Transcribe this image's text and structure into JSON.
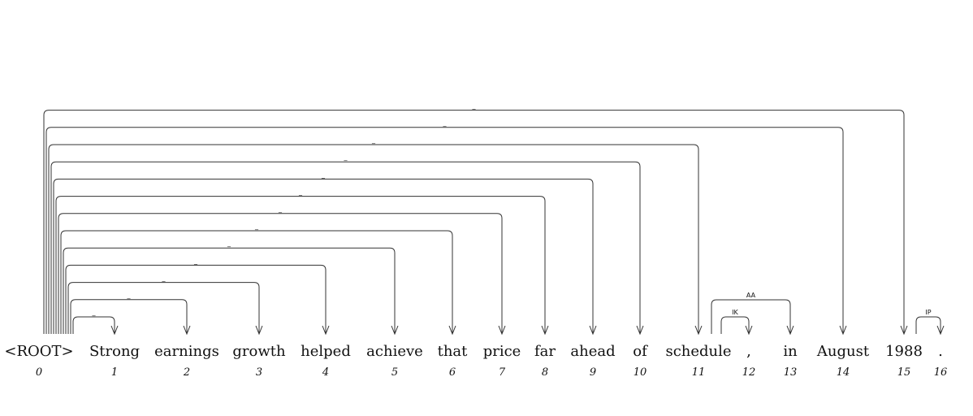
{
  "tokens": [
    {
      "text": "<ROOT>",
      "index": "0"
    },
    {
      "text": "Strong",
      "index": "1"
    },
    {
      "text": "earnings",
      "index": "2"
    },
    {
      "text": "growth",
      "index": "3"
    },
    {
      "text": "helped",
      "index": "4"
    },
    {
      "text": "achieve",
      "index": "5"
    },
    {
      "text": "that",
      "index": "6"
    },
    {
      "text": "price",
      "index": "7"
    },
    {
      "text": "far",
      "index": "8"
    },
    {
      "text": "ahead",
      "index": "9"
    },
    {
      "text": "of",
      "index": "10"
    },
    {
      "text": "schedule",
      "index": "11"
    },
    {
      "text": ",",
      "index": "12"
    },
    {
      "text": "in",
      "index": "13"
    },
    {
      "text": "August",
      "index": "14"
    },
    {
      "text": "1988",
      "index": "15"
    },
    {
      "text": ".",
      "index": "16"
    }
  ],
  "arcs": [
    {
      "from": 0,
      "to": 1,
      "label": "_"
    },
    {
      "from": 0,
      "to": 2,
      "label": "_"
    },
    {
      "from": 0,
      "to": 3,
      "label": "_"
    },
    {
      "from": 0,
      "to": 4,
      "label": "_"
    },
    {
      "from": 0,
      "to": 5,
      "label": "_"
    },
    {
      "from": 0,
      "to": 6,
      "label": "_"
    },
    {
      "from": 0,
      "to": 7,
      "label": "_"
    },
    {
      "from": 0,
      "to": 8,
      "label": "_"
    },
    {
      "from": 0,
      "to": 9,
      "label": "_"
    },
    {
      "from": 0,
      "to": 10,
      "label": "_"
    },
    {
      "from": 0,
      "to": 11,
      "label": "_"
    },
    {
      "from": 0,
      "to": 14,
      "label": "_"
    },
    {
      "from": 0,
      "to": 15,
      "label": "_"
    },
    {
      "from": 11,
      "to": 12,
      "label": "IK"
    },
    {
      "from": 11,
      "to": 13,
      "label": "AA"
    },
    {
      "from": 15,
      "to": 16,
      "label": "IP"
    }
  ]
}
